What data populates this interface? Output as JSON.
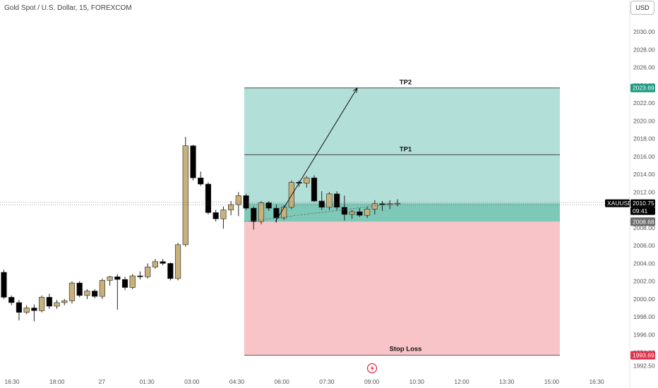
{
  "header": {
    "title": "Gold Spot / U.S. Dollar, 15, FOREXCOM",
    "currency": "USD"
  },
  "colors": {
    "bull": "#c8b27a",
    "bear": "#000000",
    "profit_zone": "#b2dfd8",
    "loss_zone": "#f8c4c8",
    "entry_zone": "#7ec8b8",
    "tp_tag": "#1f9a82",
    "sl_tag": "#e0314d",
    "price_tag": "#000000",
    "entry_tag": "#6b6b6b"
  },
  "price_labels": {
    "tp2_price": "2023.69",
    "sl_price": "1993.69",
    "entry_price": "2008.68",
    "symbol": "XAUUSD",
    "last_price": "2010.75",
    "countdown": "09:41"
  },
  "zone_labels": {
    "tp2": "TP2",
    "tp1": "TP1",
    "stop_loss": "Stop Loss"
  },
  "chart_data": {
    "type": "candlestick",
    "title": "Gold Spot / U.S. Dollar, 15, FOREXCOM",
    "ylim": [
      1992.5,
      2032
    ],
    "y_ticks": [
      "2030.00",
      "2028.00",
      "2026.00",
      "2024.00",
      "2022.00",
      "2020.00",
      "2018.00",
      "2016.00",
      "2014.00",
      "2012.00",
      "2010.00",
      "2008.00",
      "2006.00",
      "2004.00",
      "2002.00",
      "2000.00",
      "1998.00",
      "1996.00",
      "1994.00",
      "1992.50"
    ],
    "x_ticks": [
      "16:30",
      "18:00",
      "27",
      "01:30",
      "03:00",
      "04:30",
      "06:00",
      "07:30",
      "09:00",
      "10:30",
      "12:00",
      "13:30",
      "15:00",
      "16:30"
    ],
    "ohlc": [
      [
        2003.0,
        2003.3,
        2000.0,
        2000.2
      ],
      [
        2000.2,
        2000.4,
        1999.3,
        1999.6
      ],
      [
        1999.6,
        1999.9,
        1997.6,
        1998.5
      ],
      [
        1998.5,
        1999.3,
        1998.3,
        1999.0
      ],
      [
        1999.0,
        1999.4,
        1997.5,
        1998.7
      ],
      [
        1998.7,
        2000.4,
        1998.5,
        2000.2
      ],
      [
        2000.2,
        2000.6,
        1998.9,
        1999.2
      ],
      [
        1999.2,
        1999.9,
        1998.9,
        1999.6
      ],
      [
        1999.6,
        2000.0,
        1999.3,
        1999.8
      ],
      [
        1999.8,
        2002.0,
        1999.5,
        2001.8
      ],
      [
        2001.8,
        2002.0,
        2000.2,
        2000.4
      ],
      [
        2000.4,
        2001.1,
        2000.0,
        2000.9
      ],
      [
        2000.9,
        2001.1,
        2000.1,
        2000.3
      ],
      [
        2000.3,
        2002.3,
        2000.0,
        2002.1
      ],
      [
        2002.1,
        2002.6,
        2001.5,
        2002.5
      ],
      [
        2002.5,
        2002.8,
        1998.8,
        2002.2
      ],
      [
        2002.2,
        2002.5,
        2001.0,
        2001.3
      ],
      [
        2001.3,
        2002.8,
        2001.1,
        2002.6
      ],
      [
        2002.6,
        2003.1,
        2002.2,
        2002.5
      ],
      [
        2002.5,
        2004.0,
        2002.3,
        2003.6
      ],
      [
        2003.6,
        2004.5,
        2003.4,
        2004.2
      ],
      [
        2004.2,
        2004.5,
        2003.8,
        2004.0
      ],
      [
        2004.0,
        2004.1,
        2002.1,
        2002.3
      ],
      [
        2002.3,
        2006.3,
        2002.1,
        2006.1
      ],
      [
        2006.1,
        2018.2,
        2005.9,
        2017.2
      ],
      [
        2017.2,
        2017.3,
        2013.3,
        2013.6
      ],
      [
        2013.6,
        2014.3,
        2012.7,
        2012.9
      ],
      [
        2012.9,
        2013.1,
        2009.5,
        2009.7
      ],
      [
        2009.7,
        2010.0,
        2008.7,
        2009.0
      ],
      [
        2009.0,
        2010.4,
        2007.9,
        2010.0
      ],
      [
        2010.0,
        2011.0,
        2009.4,
        2010.6
      ],
      [
        2010.6,
        2012.0,
        2009.3,
        2011.6
      ],
      [
        2011.6,
        2011.8,
        2010.0,
        2010.2
      ],
      [
        2010.2,
        2010.4,
        2007.8,
        2008.7
      ],
      [
        2008.7,
        2011.0,
        2008.4,
        2010.8
      ],
      [
        2010.8,
        2011.0,
        2009.9,
        2010.2
      ],
      [
        2010.2,
        2010.6,
        2008.6,
        2009.1
      ],
      [
        2009.1,
        2010.5,
        2008.9,
        2010.3
      ],
      [
        2010.3,
        2013.3,
        2010.1,
        2013.1
      ],
      [
        2013.1,
        2013.3,
        2012.6,
        2013.0
      ],
      [
        2013.0,
        2013.8,
        2012.5,
        2013.6
      ],
      [
        2013.6,
        2013.9,
        2010.9,
        2011.0
      ],
      [
        2011.0,
        2012.1,
        2010.0,
        2010.3
      ],
      [
        2010.3,
        2012.0,
        2010.0,
        2011.8
      ],
      [
        2011.8,
        2012.1,
        2010.0,
        2010.3
      ],
      [
        2010.3,
        2011.6,
        2008.8,
        2009.5
      ],
      [
        2009.5,
        2010.0,
        2009.0,
        2009.8
      ],
      [
        2009.8,
        2010.2,
        2009.2,
        2009.4
      ],
      [
        2009.4,
        2010.4,
        2009.1,
        2010.1
      ],
      [
        2010.1,
        2011.1,
        2009.5,
        2010.7
      ],
      [
        2010.7,
        2011.0,
        2009.9,
        2010.6
      ],
      [
        2010.6,
        2011.1,
        2010.1,
        2010.7
      ],
      [
        2010.7,
        2011.2,
        2010.4,
        2010.75
      ]
    ],
    "trade_zones": {
      "tp2": 2023.69,
      "tp1": 2016.2,
      "entry": 2008.68,
      "stop_loss": 1993.69
    },
    "arrow": {
      "from_price": 2008.68,
      "to_price": 2023.69
    },
    "last_price": 2010.75
  }
}
